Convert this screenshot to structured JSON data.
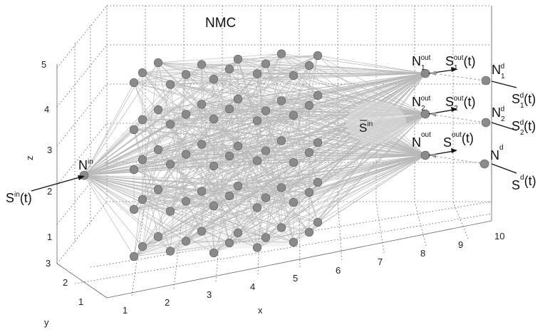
{
  "title": "NMC",
  "axes": {
    "x_label": "x",
    "y_label": "y",
    "z_label": "z",
    "x_ticks": [
      "1",
      "2",
      "3",
      "4",
      "5",
      "6",
      "7",
      "8",
      "9",
      "10"
    ],
    "y_ticks": [
      "1",
      "2",
      "3"
    ],
    "z_ticks": [
      "1",
      "2",
      "3",
      "4",
      "5"
    ]
  },
  "input": {
    "node_label": "N",
    "node_sup": "in",
    "signal": "S",
    "signal_sup": "in",
    "signal_arg": "(t)",
    "cloud_label": "S",
    "cloud_sup": "in"
  },
  "outputs": [
    {
      "n_sub": "1",
      "s_sub": "1",
      "out_sup": "out",
      "d_sup": "d",
      "arg": "(t)"
    },
    {
      "n_sub": "2",
      "s_sub": "2",
      "out_sup": "out",
      "d_sup": "d",
      "arg": "(t)"
    },
    {
      "n_sub": "",
      "s_sub": "",
      "out_sup": "out",
      "d_sup": "d",
      "arg": "(t)"
    }
  ],
  "colors": {
    "node": "#8a8a8a",
    "edge": "#b9b9b9",
    "plane": "#dcdcdc"
  }
}
